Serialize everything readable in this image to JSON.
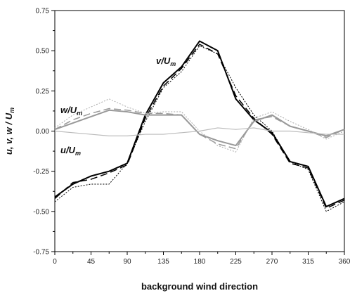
{
  "chart_data": {
    "type": "line",
    "title": "",
    "xlabel": "background wind direction",
    "ylabel": "u, v, w / U_m",
    "ylabel_parts": {
      "main": "u, v, w / U",
      "sub": "m"
    },
    "xlim": [
      0,
      360
    ],
    "ylim": [
      -0.75,
      0.75
    ],
    "xticks": [
      0,
      45,
      90,
      135,
      180,
      225,
      270,
      315,
      360
    ],
    "yticks": [
      -0.75,
      -0.5,
      -0.25,
      0.0,
      0.25,
      0.5,
      0.75
    ],
    "ytick_labels": [
      "-0.75",
      "-0.50",
      "-0.25",
      "0.00",
      "0.25",
      "0.50",
      "0.75"
    ],
    "grid": false,
    "legend": "none",
    "x": [
      0,
      22.5,
      45,
      67.5,
      90,
      112.5,
      135,
      157.5,
      180,
      202.5,
      225,
      247.5,
      270,
      292.5,
      315,
      337.5,
      360
    ],
    "series": [
      {
        "name": "v/U_m",
        "label_main": "v/U",
        "label_sub": "m",
        "group": "v",
        "color": "#000000",
        "dash": "solid",
        "width": 2,
        "values": [
          -0.41,
          -0.33,
          -0.28,
          -0.25,
          -0.2,
          0.1,
          0.3,
          0.4,
          0.56,
          0.5,
          0.2,
          0.07,
          -0.01,
          -0.19,
          -0.22,
          -0.47,
          -0.42
        ]
      },
      {
        "name": "",
        "group": "v",
        "color": "#000000",
        "dash": "long-dash",
        "width": 1.5,
        "values": [
          -0.42,
          -0.32,
          -0.3,
          -0.26,
          -0.21,
          0.08,
          0.28,
          0.39,
          0.54,
          0.48,
          0.22,
          0.08,
          -0.02,
          -0.2,
          -0.23,
          -0.48,
          -0.43
        ]
      },
      {
        "name": "",
        "group": "v",
        "color": "#000000",
        "dash": "dot",
        "width": 1,
        "values": [
          -0.44,
          -0.35,
          -0.33,
          -0.33,
          -0.2,
          0.06,
          0.27,
          0.37,
          0.53,
          0.48,
          0.27,
          0.1,
          0.0,
          -0.19,
          -0.24,
          -0.5,
          -0.44
        ]
      },
      {
        "name": "w/U_m",
        "label_main": "w/U",
        "label_sub": "m",
        "group": "w",
        "color": "#999999",
        "dash": "solid",
        "width": 2,
        "values": [
          0.01,
          0.05,
          0.09,
          0.13,
          0.12,
          0.1,
          0.1,
          0.1,
          -0.02,
          -0.06,
          -0.09,
          0.06,
          0.1,
          0.03,
          0.0,
          -0.03,
          0.01
        ]
      },
      {
        "name": "",
        "group": "w",
        "color": "#999999",
        "dash": "long-dash",
        "width": 1.5,
        "values": [
          0.01,
          0.07,
          0.11,
          0.14,
          0.13,
          0.11,
          0.11,
          0.1,
          -0.02,
          -0.08,
          -0.11,
          0.07,
          0.09,
          0.03,
          0.0,
          -0.04,
          0.01
        ]
      },
      {
        "name": "",
        "group": "w",
        "color": "#aaaaaa",
        "dash": "dot",
        "width": 1,
        "values": [
          0.02,
          0.1,
          0.15,
          0.2,
          0.15,
          0.11,
          0.12,
          0.12,
          0.0,
          -0.09,
          -0.13,
          0.08,
          0.12,
          0.06,
          0.01,
          -0.05,
          0.0
        ]
      },
      {
        "name": "u/U_m",
        "label_main": "u/U",
        "label_sub": "m",
        "group": "u",
        "color": "#bbbbbb",
        "dash": "solid",
        "width": 1.2,
        "values": [
          0.0,
          -0.01,
          -0.02,
          -0.03,
          -0.03,
          -0.02,
          -0.02,
          -0.01,
          0.0,
          0.02,
          0.01,
          0.02,
          0.0,
          0.0,
          -0.01,
          -0.02,
          -0.02
        ]
      }
    ]
  }
}
